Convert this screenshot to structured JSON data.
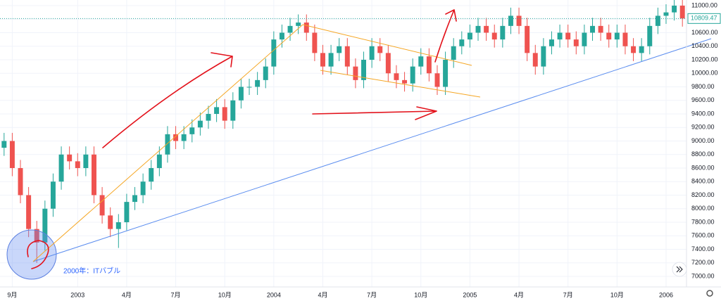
{
  "chart_data": {
    "type": "candlestick",
    "up_color": "#26a69a",
    "down_color": "#ef5350",
    "grid": true,
    "annotations": [
      "2000年：ITバブル"
    ],
    "categories": [
      null,
      "9月",
      null,
      null,
      null,
      null,
      null,
      null,
      null,
      "2003",
      null,
      null,
      null,
      null,
      null,
      "4月",
      null,
      null,
      null,
      null,
      null,
      "7月",
      null,
      null,
      null,
      null,
      null,
      "10月",
      null,
      null,
      null,
      null,
      null,
      "2004",
      null,
      null,
      null,
      null,
      null,
      "4月",
      null,
      null,
      null,
      null,
      null,
      "7月",
      null,
      null,
      null,
      null,
      null,
      "10月",
      null,
      null,
      null,
      null,
      null,
      "2005",
      null,
      null,
      null,
      null,
      null,
      "4月",
      null,
      null,
      null,
      null,
      null,
      "7月",
      null,
      null,
      null,
      null,
      null,
      "10月",
      null,
      null,
      null,
      null,
      null,
      "2006",
      null,
      null
    ],
    "ohlc": [
      [
        8900,
        9120,
        8780,
        9000
      ],
      [
        9000,
        9120,
        8480,
        8600
      ],
      [
        8600,
        8720,
        8080,
        8200
      ],
      [
        8200,
        8320,
        7580,
        7700
      ],
      [
        7700,
        7820,
        7200,
        7500
      ],
      [
        7500,
        8120,
        7380,
        8000
      ],
      [
        8000,
        8520,
        7880,
        8400
      ],
      [
        8400,
        8920,
        8280,
        8800
      ],
      [
        8800,
        8920,
        8580,
        8700
      ],
      [
        8700,
        8820,
        8480,
        8600
      ],
      [
        8600,
        8920,
        8480,
        8800
      ],
      [
        8800,
        8920,
        8080,
        8200
      ],
      [
        8200,
        8320,
        7780,
        7900
      ],
      [
        7900,
        8020,
        7580,
        7700
      ],
      [
        7700,
        7920,
        7420,
        7800
      ],
      [
        7800,
        8220,
        7680,
        8100
      ],
      [
        8100,
        8320,
        7980,
        8200
      ],
      [
        8200,
        8520,
        8080,
        8400
      ],
      [
        8400,
        8720,
        8280,
        8600
      ],
      [
        8600,
        8920,
        8480,
        8800
      ],
      [
        8800,
        9220,
        8680,
        9100
      ],
      [
        9100,
        9220,
        8880,
        9000
      ],
      [
        9000,
        9220,
        8880,
        9100
      ],
      [
        9100,
        9320,
        8980,
        9200
      ],
      [
        9200,
        9420,
        9080,
        9300
      ],
      [
        9300,
        9520,
        9180,
        9400
      ],
      [
        9400,
        9620,
        9280,
        9500
      ],
      [
        9500,
        9620,
        9180,
        9300
      ],
      [
        9300,
        9720,
        9180,
        9600
      ],
      [
        9600,
        9920,
        9480,
        9800
      ],
      [
        9800,
        9920,
        9680,
        9800
      ],
      [
        9800,
        10020,
        9680,
        9900
      ],
      [
        9900,
        10220,
        9780,
        10100
      ],
      [
        10100,
        10620,
        9980,
        10500
      ],
      [
        10500,
        10720,
        10380,
        10600
      ],
      [
        10600,
        10820,
        10480,
        10700
      ],
      [
        10700,
        10870,
        10580,
        10750
      ],
      [
        10750,
        10870,
        10480,
        10600
      ],
      [
        10600,
        10720,
        10180,
        10300
      ],
      [
        10300,
        10420,
        9980,
        10100
      ],
      [
        10100,
        10420,
        9980,
        10300
      ],
      [
        10300,
        10520,
        10180,
        10400
      ],
      [
        10400,
        10520,
        9980,
        10100
      ],
      [
        10100,
        10220,
        9780,
        9900
      ],
      [
        9900,
        10320,
        9780,
        10200
      ],
      [
        10200,
        10520,
        10080,
        10400
      ],
      [
        10400,
        10520,
        10180,
        10300
      ],
      [
        10300,
        10420,
        9880,
        10000
      ],
      [
        10000,
        10120,
        9780,
        9900
      ],
      [
        9900,
        10020,
        9730,
        9850
      ],
      [
        9850,
        10220,
        9730,
        10100
      ],
      [
        10100,
        10370,
        9980,
        10250
      ],
      [
        10250,
        10370,
        9880,
        10000
      ],
      [
        10000,
        10120,
        9680,
        9800
      ],
      [
        9800,
        10320,
        9680,
        10200
      ],
      [
        10200,
        10520,
        10080,
        10400
      ],
      [
        10400,
        10620,
        10280,
        10500
      ],
      [
        10500,
        10720,
        10380,
        10600
      ],
      [
        10600,
        10820,
        10480,
        10700
      ],
      [
        10700,
        10820,
        10480,
        10600
      ],
      [
        10600,
        10720,
        10380,
        10500
      ],
      [
        10500,
        10820,
        10380,
        10700
      ],
      [
        10700,
        10970,
        10580,
        10850
      ],
      [
        10850,
        10970,
        10580,
        10700
      ],
      [
        10700,
        10820,
        10180,
        10300
      ],
      [
        10300,
        10420,
        9980,
        10100
      ],
      [
        10100,
        10520,
        9980,
        10400
      ],
      [
        10400,
        10620,
        10280,
        10500
      ],
      [
        10500,
        10720,
        10380,
        10600
      ],
      [
        10600,
        10720,
        10380,
        10500
      ],
      [
        10500,
        10620,
        10280,
        10400
      ],
      [
        10400,
        10720,
        10280,
        10600
      ],
      [
        10600,
        10820,
        10480,
        10700
      ],
      [
        10700,
        10820,
        10480,
        10600
      ],
      [
        10600,
        10720,
        10380,
        10500
      ],
      [
        10500,
        10720,
        10380,
        10600
      ],
      [
        10600,
        10720,
        10280,
        10400
      ],
      [
        10400,
        10520,
        10180,
        10300
      ],
      [
        10300,
        10520,
        10180,
        10400
      ],
      [
        10400,
        10820,
        10280,
        10700
      ],
      [
        10700,
        10970,
        10580,
        10850
      ],
      [
        10850,
        11020,
        10730,
        10900
      ],
      [
        10900,
        11120,
        10780,
        11000
      ],
      [
        11000,
        11120,
        10689.47,
        10809.47
      ]
    ],
    "ylim": [
      6844,
      11083
    ],
    "yticks": [
      {
        "value": 7000,
        "label": "7000.00"
      },
      {
        "value": 7200,
        "label": "7200.00"
      },
      {
        "value": 7400,
        "label": "7400.00"
      },
      {
        "value": 7600,
        "label": "7600.00"
      },
      {
        "value": 7800,
        "label": "7800.00"
      },
      {
        "value": 8000,
        "label": "8000.00"
      },
      {
        "value": 8200,
        "label": "8200.00"
      },
      {
        "value": 8400,
        "label": "8400.00"
      },
      {
        "value": 8600,
        "label": "8600.00"
      },
      {
        "value": 8800,
        "label": "8800.00"
      },
      {
        "value": 9000,
        "label": "9000.00"
      },
      {
        "value": 9200,
        "label": "9200.00"
      },
      {
        "value": 9400,
        "label": "9400.00"
      },
      {
        "value": 9600,
        "label": "9600.00"
      },
      {
        "value": 9800,
        "label": "9800.00"
      },
      {
        "value": 10000,
        "label": "10000.00"
      },
      {
        "value": 10200,
        "label": "10200.00"
      },
      {
        "value": 10400,
        "label": "10400.00"
      },
      {
        "value": 10600,
        "label": "10600.00"
      },
      {
        "value": 10800,
        "label": "10800.00"
      },
      {
        "value": 11000,
        "label": "11000.00"
      }
    ]
  }
}
